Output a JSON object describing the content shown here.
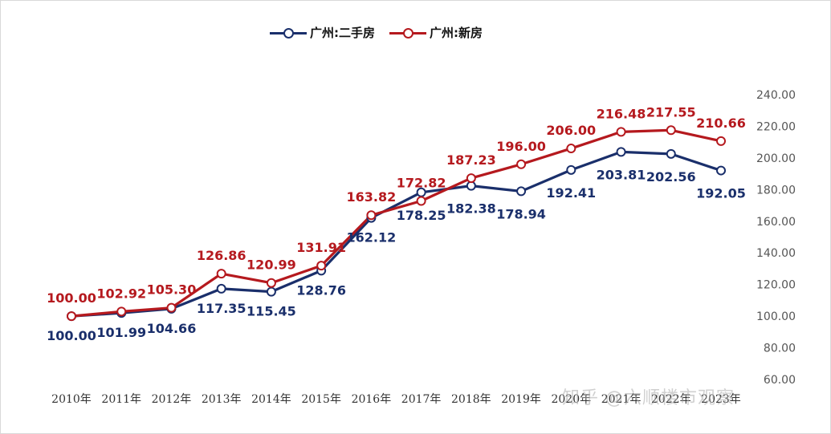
{
  "chart_data": {
    "type": "line",
    "categories": [
      "2010年",
      "2011年",
      "2012年",
      "2013年",
      "2014年",
      "2015年",
      "2016年",
      "2017年",
      "2018年",
      "2019年",
      "2020年",
      "2021年",
      "2022年",
      "2023年"
    ],
    "series": [
      {
        "name": "广州:二手房",
        "color": "#1a2f6b",
        "values": [
          100.0,
          101.99,
          104.66,
          117.35,
          115.45,
          128.76,
          162.12,
          178.25,
          182.38,
          178.94,
          192.41,
          203.81,
          202.56,
          192.05
        ],
        "labels": [
          "100.00",
          "101.99",
          "104.66",
          "117.35",
          "115.45",
          "128.76",
          "162.12",
          "178.25",
          "182.38",
          "178.94",
          "192.41",
          "203.81",
          "202.56",
          "192.05"
        ]
      },
      {
        "name": "广州:新房",
        "color": "#b5191e",
        "values": [
          100.0,
          102.92,
          105.3,
          126.86,
          120.99,
          131.91,
          163.82,
          172.82,
          187.23,
          196.0,
          206.0,
          216.48,
          217.55,
          210.66
        ],
        "labels": [
          "100.00",
          "102.92",
          "105.30",
          "126.86",
          "120.99",
          "131.91",
          "163.82",
          "172.82",
          "187.23",
          "196.00",
          "206.00",
          "216.48",
          "217.55",
          "210.66"
        ]
      }
    ],
    "ylim": [
      60,
      240
    ],
    "y_ticks": [
      "60.00",
      "80.00",
      "100.00",
      "120.00",
      "140.00",
      "160.00",
      "180.00",
      "200.00",
      "220.00",
      "240.00"
    ],
    "y_axis_side": "right",
    "grid": false,
    "legend_position": "top",
    "title": "",
    "xlabel": "",
    "ylabel": ""
  },
  "legend": {
    "resale_label": "广州:二手房",
    "new_label": "广州:新房"
  },
  "watermark": "知乎 @六顺楼市观察"
}
